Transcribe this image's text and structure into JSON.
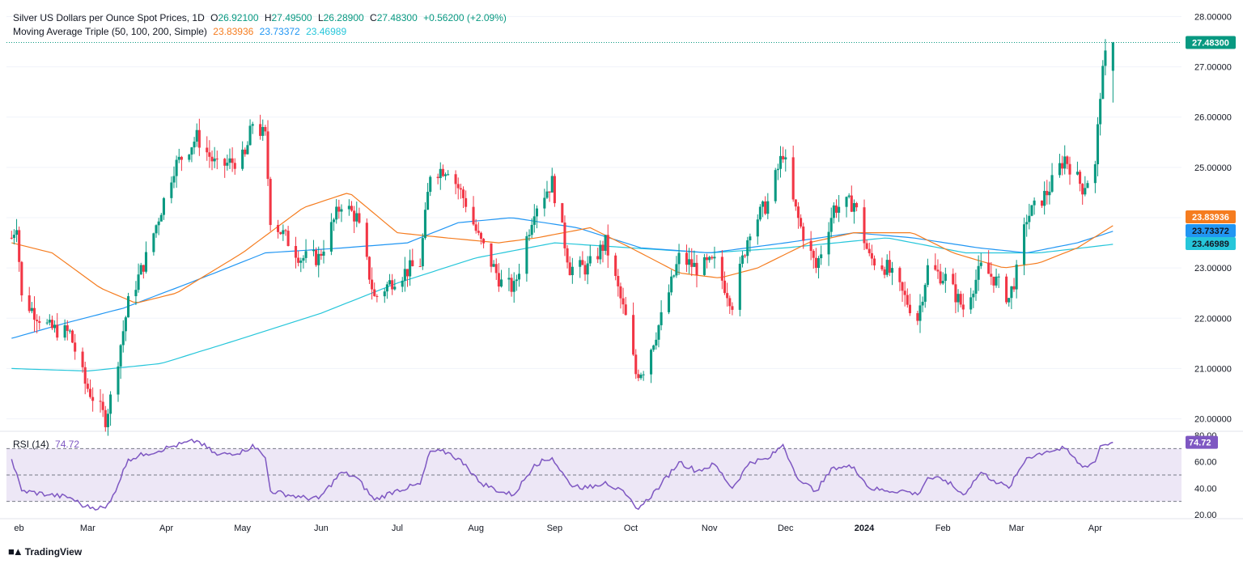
{
  "header": {
    "symbol_title": "Silver US Dollars per Ounce Spot Prices, 1D",
    "ohlc": {
      "o_label": "O",
      "o": "26.92100",
      "h_label": "H",
      "h": "27.49500",
      "l_label": "L",
      "l": "26.28900",
      "c_label": "C",
      "c": "27.48300",
      "change": "+0.56200 (+2.09%)"
    },
    "ma_title": "Moving Average Triple (50, 100, 200, Simple)",
    "ma_values": [
      "23.83936",
      "23.73372",
      "23.46989"
    ],
    "rsi_title": "RSI (14)",
    "rsi_value": "74.72"
  },
  "colors": {
    "up": "#089981",
    "down": "#f23645",
    "ma50": "#f57c1f",
    "ma100": "#2196f3",
    "ma200": "#26c6da",
    "rsi": "#7e57c2",
    "rsi_band": "#ede7f6"
  },
  "branding": {
    "logo_icon": "tradingview-logo-icon",
    "logo_text": "TradingView"
  },
  "chart_data": [
    {
      "type": "candlestick",
      "title": "Silver US Dollars per Ounce Spot Prices, 1D",
      "ylim": [
        19.8,
        28.2
      ],
      "y_ticks": [
        "20.00000",
        "21.00000",
        "22.00000",
        "23.00000",
        "24.00000",
        "25.00000",
        "26.00000",
        "27.00000",
        "28.00000"
      ],
      "x_ticks": [
        "Feb",
        "Mar",
        "Apr",
        "May",
        "Jun",
        "Jul",
        "Aug",
        "Sep",
        "Oct",
        "Nov",
        "Dec",
        "2024",
        "Feb",
        "Mar",
        "Apr"
      ],
      "last_price_label": "27.48300",
      "anchors": [
        [
          "2023-01-30",
          23.6
        ],
        [
          "2023-02-01",
          23.9
        ],
        [
          "2023-02-03",
          22.4
        ],
        [
          "2023-02-14",
          21.8
        ],
        [
          "2023-02-22",
          21.7
        ],
        [
          "2023-02-28",
          20.7
        ],
        [
          "2023-03-08",
          20.0
        ],
        [
          "2023-03-10",
          20.4
        ],
        [
          "2023-03-17",
          22.3
        ],
        [
          "2023-03-24",
          23.2
        ],
        [
          "2023-04-04",
          25.0
        ],
        [
          "2023-04-13",
          25.6
        ],
        [
          "2023-04-21",
          25.0
        ],
        [
          "2023-05-02",
          25.2
        ],
        [
          "2023-05-05",
          25.9
        ],
        [
          "2023-05-10",
          25.6
        ],
        [
          "2023-05-12",
          24.0
        ],
        [
          "2023-05-24",
          23.2
        ],
        [
          "2023-05-31",
          23.2
        ],
        [
          "2023-06-09",
          24.3
        ],
        [
          "2023-06-15",
          24.0
        ],
        [
          "2023-06-22",
          22.4
        ],
        [
          "2023-06-30",
          22.8
        ],
        [
          "2023-07-10",
          23.1
        ],
        [
          "2023-07-14",
          24.9
        ],
        [
          "2023-07-21",
          25.0
        ],
        [
          "2023-07-28",
          24.3
        ],
        [
          "2023-08-02",
          23.6
        ],
        [
          "2023-08-11",
          22.7
        ],
        [
          "2023-08-16",
          22.6
        ],
        [
          "2023-08-24",
          24.2
        ],
        [
          "2023-08-31",
          24.7
        ],
        [
          "2023-09-07",
          23.0
        ],
        [
          "2023-09-14",
          23.0
        ],
        [
          "2023-09-21",
          23.5
        ],
        [
          "2023-09-29",
          22.0
        ],
        [
          "2023-10-03",
          20.9
        ],
        [
          "2023-10-06",
          21.0
        ],
        [
          "2023-10-13",
          22.0
        ],
        [
          "2023-10-20",
          23.2
        ],
        [
          "2023-10-27",
          23.0
        ],
        [
          "2023-11-03",
          23.1
        ],
        [
          "2023-11-10",
          22.3
        ],
        [
          "2023-11-17",
          23.8
        ],
        [
          "2023-11-24",
          24.3
        ],
        [
          "2023-11-30",
          25.3
        ],
        [
          "2023-12-04",
          24.3
        ],
        [
          "2023-12-07",
          23.8
        ],
        [
          "2023-12-13",
          23.0
        ],
        [
          "2023-12-20",
          24.2
        ],
        [
          "2023-12-28",
          24.3
        ],
        [
          "2024-01-03",
          23.2
        ],
        [
          "2024-01-10",
          23.0
        ],
        [
          "2024-01-17",
          22.4
        ],
        [
          "2024-01-22",
          22.0
        ],
        [
          "2024-01-26",
          23.0
        ],
        [
          "2024-02-02",
          22.8
        ],
        [
          "2024-02-09",
          22.2
        ],
        [
          "2024-02-16",
          23.0
        ],
        [
          "2024-02-21",
          22.8
        ],
        [
          "2024-02-27",
          22.4
        ],
        [
          "2024-03-01",
          22.9
        ],
        [
          "2024-03-05",
          24.0
        ],
        [
          "2024-03-13",
          24.5
        ],
        [
          "2024-03-20",
          25.2
        ],
        [
          "2024-03-27",
          24.6
        ],
        [
          "2024-04-01",
          25.0
        ],
        [
          "2024-04-03",
          26.5
        ],
        [
          "2024-04-05",
          27.2
        ],
        [
          "2024-04-08",
          27.48
        ]
      ],
      "moving_averages": {
        "ma50": [
          [
            "2023-01-30",
            23.5
          ],
          [
            "2023-02-15",
            23.3
          ],
          [
            "2023-03-06",
            22.6
          ],
          [
            "2023-03-20",
            22.3
          ],
          [
            "2023-04-05",
            22.5
          ],
          [
            "2023-05-01",
            23.3
          ],
          [
            "2023-05-25",
            24.2
          ],
          [
            "2023-06-12",
            24.5
          ],
          [
            "2023-07-01",
            23.7
          ],
          [
            "2023-07-20",
            23.6
          ],
          [
            "2023-08-10",
            23.5
          ],
          [
            "2023-08-25",
            23.6
          ],
          [
            "2023-09-15",
            23.8
          ],
          [
            "2023-10-01",
            23.4
          ],
          [
            "2023-10-20",
            22.9
          ],
          [
            "2023-11-05",
            22.8
          ],
          [
            "2023-11-20",
            23.0
          ],
          [
            "2023-12-10",
            23.5
          ],
          [
            "2023-12-28",
            23.7
          ],
          [
            "2024-01-20",
            23.7
          ],
          [
            "2024-02-05",
            23.3
          ],
          [
            "2024-02-25",
            23.0
          ],
          [
            "2024-03-10",
            23.1
          ],
          [
            "2024-03-25",
            23.4
          ],
          [
            "2024-04-08",
            23.84
          ]
        ],
        "ma100": [
          [
            "2023-01-30",
            21.6
          ],
          [
            "2023-02-20",
            21.9
          ],
          [
            "2023-03-15",
            22.2
          ],
          [
            "2023-04-10",
            22.7
          ],
          [
            "2023-05-10",
            23.3
          ],
          [
            "2023-06-10",
            23.4
          ],
          [
            "2023-07-05",
            23.5
          ],
          [
            "2023-07-25",
            23.9
          ],
          [
            "2023-08-15",
            24.0
          ],
          [
            "2023-09-10",
            23.8
          ],
          [
            "2023-10-05",
            23.4
          ],
          [
            "2023-11-01",
            23.3
          ],
          [
            "2023-12-01",
            23.5
          ],
          [
            "2023-12-28",
            23.7
          ],
          [
            "2024-01-20",
            23.6
          ],
          [
            "2024-02-15",
            23.4
          ],
          [
            "2024-03-05",
            23.3
          ],
          [
            "2024-03-25",
            23.5
          ],
          [
            "2024-04-08",
            23.73
          ]
        ],
        "ma200": [
          [
            "2023-01-30",
            21.0
          ],
          [
            "2023-03-01",
            20.95
          ],
          [
            "2023-03-30",
            21.1
          ],
          [
            "2023-05-01",
            21.6
          ],
          [
            "2023-06-01",
            22.1
          ],
          [
            "2023-07-01",
            22.7
          ],
          [
            "2023-08-01",
            23.2
          ],
          [
            "2023-09-01",
            23.5
          ],
          [
            "2023-10-01",
            23.4
          ],
          [
            "2023-11-01",
            23.3
          ],
          [
            "2023-12-01",
            23.4
          ],
          [
            "2024-01-10",
            23.6
          ],
          [
            "2024-02-10",
            23.3
          ],
          [
            "2024-03-10",
            23.3
          ],
          [
            "2024-04-08",
            23.47
          ]
        ]
      }
    },
    {
      "type": "line",
      "title": "RSI (14)",
      "ylim": [
        20,
        80
      ],
      "y_ticks": [
        "20.00",
        "40.00",
        "60.00",
        "80.00"
      ],
      "reference_levels": [
        30,
        50,
        70
      ],
      "last_value_label": "74.72",
      "anchors": [
        [
          "2023-01-30",
          62
        ],
        [
          "2023-02-03",
          38
        ],
        [
          "2023-02-14",
          35
        ],
        [
          "2023-02-22",
          33
        ],
        [
          "2023-02-28",
          26
        ],
        [
          "2023-03-08",
          25
        ],
        [
          "2023-03-10",
          30
        ],
        [
          "2023-03-17",
          62
        ],
        [
          "2023-03-24",
          66
        ],
        [
          "2023-04-04",
          72
        ],
        [
          "2023-04-13",
          76
        ],
        [
          "2023-04-21",
          65
        ],
        [
          "2023-05-02",
          68
        ],
        [
          "2023-05-05",
          73
        ],
        [
          "2023-05-10",
          63
        ],
        [
          "2023-05-12",
          38
        ],
        [
          "2023-05-24",
          33
        ],
        [
          "2023-05-31",
          32
        ],
        [
          "2023-06-09",
          52
        ],
        [
          "2023-06-15",
          48
        ],
        [
          "2023-06-22",
          31
        ],
        [
          "2023-06-30",
          38
        ],
        [
          "2023-07-10",
          43
        ],
        [
          "2023-07-14",
          68
        ],
        [
          "2023-07-21",
          67
        ],
        [
          "2023-07-28",
          58
        ],
        [
          "2023-08-02",
          45
        ],
        [
          "2023-08-11",
          37
        ],
        [
          "2023-08-16",
          35
        ],
        [
          "2023-08-24",
          58
        ],
        [
          "2023-08-31",
          63
        ],
        [
          "2023-09-07",
          43
        ],
        [
          "2023-09-14",
          40
        ],
        [
          "2023-09-21",
          45
        ],
        [
          "2023-09-29",
          35
        ],
        [
          "2023-10-03",
          25
        ],
        [
          "2023-10-06",
          28
        ],
        [
          "2023-10-13",
          43
        ],
        [
          "2023-10-20",
          60
        ],
        [
          "2023-10-27",
          53
        ],
        [
          "2023-11-03",
          58
        ],
        [
          "2023-11-10",
          40
        ],
        [
          "2023-11-17",
          60
        ],
        [
          "2023-11-24",
          62
        ],
        [
          "2023-11-30",
          73
        ],
        [
          "2023-12-04",
          55
        ],
        [
          "2023-12-07",
          45
        ],
        [
          "2023-12-13",
          38
        ],
        [
          "2023-12-20",
          56
        ],
        [
          "2023-12-28",
          56
        ],
        [
          "2024-01-03",
          40
        ],
        [
          "2024-01-10",
          38
        ],
        [
          "2024-01-17",
          38
        ],
        [
          "2024-01-22",
          35
        ],
        [
          "2024-01-26",
          48
        ],
        [
          "2024-02-02",
          46
        ],
        [
          "2024-02-09",
          35
        ],
        [
          "2024-02-16",
          52
        ],
        [
          "2024-02-21",
          46
        ],
        [
          "2024-02-27",
          40
        ],
        [
          "2024-03-01",
          50
        ],
        [
          "2024-03-05",
          63
        ],
        [
          "2024-03-13",
          68
        ],
        [
          "2024-03-20",
          70
        ],
        [
          "2024-03-27",
          56
        ],
        [
          "2024-04-01",
          60
        ],
        [
          "2024-04-03",
          72
        ],
        [
          "2024-04-05",
          73
        ],
        [
          "2024-04-08",
          74.72
        ]
      ]
    }
  ]
}
